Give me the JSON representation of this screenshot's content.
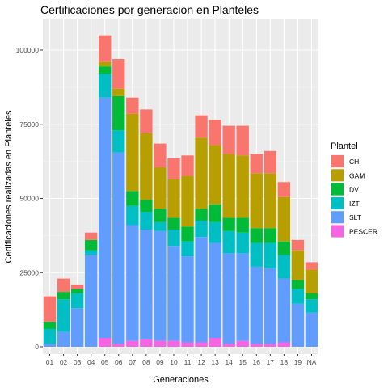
{
  "chart_data": {
    "type": "bar",
    "stacked": true,
    "title": "Certificaciones por generacion en Planteles",
    "xlabel": "Generaciones",
    "ylabel": "Certificaciones realizadas en Planteles",
    "categories": [
      "01",
      "02",
      "03",
      "04",
      "05",
      "06",
      "07",
      "08",
      "09",
      "10",
      "11",
      "12",
      "13",
      "14",
      "15",
      "16",
      "17",
      "18",
      "19",
      "NA"
    ],
    "ylim": [
      0,
      110000
    ],
    "yticks": [
      0,
      25000,
      50000,
      75000,
      100000
    ],
    "ytick_labels": [
      "0",
      "25000",
      "50000",
      "75000",
      "100000"
    ],
    "grid": true,
    "legend": {
      "title": "Plantel",
      "placement": "right",
      "entries": [
        "CH",
        "GAM",
        "DV",
        "IZT",
        "SLT",
        "PESCER"
      ]
    },
    "series": [
      {
        "name": "PESCER",
        "color": "#F564E3",
        "values": [
          0,
          0,
          0,
          0,
          3000,
          1000,
          2000,
          2500,
          2000,
          2000,
          1500,
          1500,
          3000,
          1000,
          2000,
          1000,
          1000,
          1500,
          0,
          0
        ]
      },
      {
        "name": "SLT",
        "color": "#619CFF",
        "values": [
          1000,
          5000,
          13000,
          31000,
          81000,
          64500,
          39000,
          37000,
          37000,
          32000,
          29000,
          35500,
          32000,
          30500,
          29500,
          26000,
          25500,
          21500,
          14500,
          11500
        ]
      },
      {
        "name": "IZT",
        "color": "#00BFC4",
        "values": [
          5000,
          11000,
          5000,
          1500,
          8000,
          7500,
          6500,
          6000,
          3000,
          5500,
          5000,
          5500,
          7000,
          7500,
          7000,
          8000,
          8500,
          8000,
          5000,
          4500
        ]
      },
      {
        "name": "DV",
        "color": "#00BA38",
        "values": [
          2500,
          2500,
          1500,
          3500,
          2500,
          11500,
          5000,
          4000,
          4500,
          4000,
          5000,
          4000,
          6000,
          4500,
          5000,
          5000,
          5000,
          4500,
          3000,
          2000
        ]
      },
      {
        "name": "GAM",
        "color": "#B79F00",
        "values": [
          0,
          0,
          0,
          0,
          1500,
          2500,
          26000,
          22500,
          14000,
          13000,
          17000,
          24000,
          20000,
          21500,
          21000,
          18500,
          18500,
          15000,
          10000,
          8000
        ]
      },
      {
        "name": "CH",
        "color": "#F8766D",
        "values": [
          8500,
          4500,
          1500,
          2500,
          9000,
          10000,
          5500,
          8000,
          8000,
          7000,
          7000,
          7500,
          8500,
          9500,
          10000,
          6500,
          7500,
          5000,
          3500,
          2500
        ]
      }
    ]
  }
}
